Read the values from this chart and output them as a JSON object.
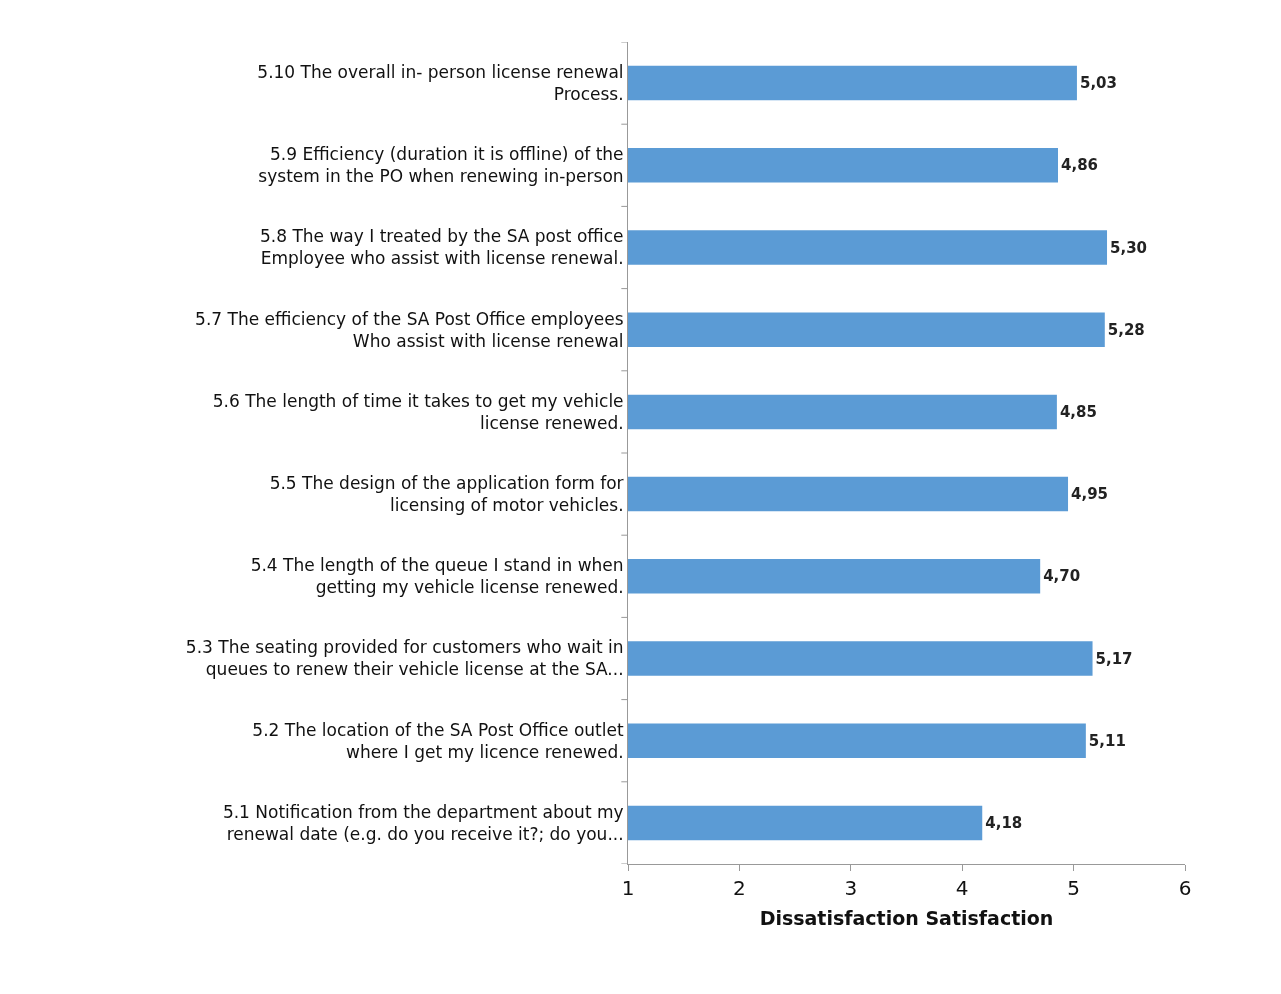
{
  "chart_data": {
    "type": "bar",
    "orientation": "horizontal",
    "xlabel": "Dissatisfaction Satisfaction",
    "categories": [
      "5.10 The overall in- person license renewal Process.",
      "5.9 Efficiency (duration it is offline) of the system in the PO when renewing in-person",
      "5.8 The way I treated by the SA post office Employee who assist with license renewal.",
      "5.7 The efficiency of the SA Post Office employees Who assist with license renewal",
      "5.6 The length of time it takes to get my vehicle license renewed.",
      "5.5 The design of the application form for licensing of motor vehicles.",
      "5.4 The length of the queue I stand in when getting my vehicle license renewed.",
      "5.3 The seating provided for customers who wait in queues to renew their vehicle license at the SA...",
      "5.2 The location of the SA Post Office outlet where I get my licence renewed.",
      "5.1 Notification from the department about my renewal date (e.g. do you receive it?; do you..."
    ],
    "values": [
      5.03,
      4.86,
      5.3,
      5.28,
      4.85,
      4.95,
      4.7,
      5.17,
      5.11,
      4.18
    ],
    "value_labels": [
      "5,03",
      "4,86",
      "5,30",
      "5,28",
      "4,85",
      "4,95",
      "4,70",
      "5,17",
      "5,11",
      "4,18"
    ],
    "color": "#5b9bd5",
    "xlim": [
      1,
      6
    ],
    "xticks": [
      1,
      2,
      3,
      4,
      5,
      6
    ],
    "grid": false
  }
}
